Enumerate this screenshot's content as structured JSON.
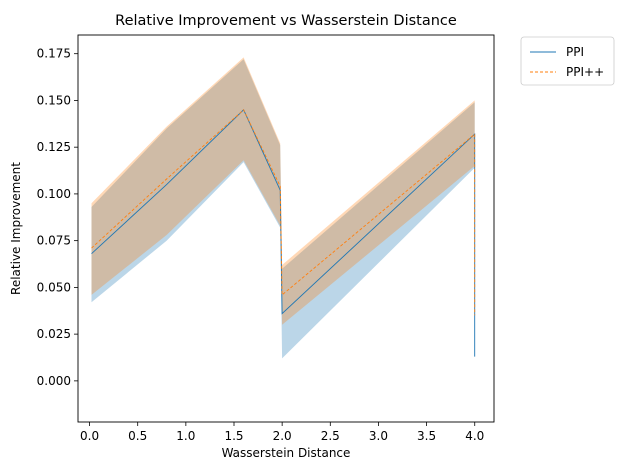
{
  "chart_data": {
    "type": "line",
    "title": "Relative Improvement vs Wasserstein Distance",
    "xlabel": "Wasserstein Distance",
    "ylabel": "Relative Improvement",
    "xlim": [
      -0.12,
      4.2
    ],
    "ylim": [
      -0.022,
      0.185
    ],
    "xticks": [
      0.0,
      0.5,
      1.0,
      1.5,
      2.0,
      2.5,
      3.0,
      3.5,
      4.0
    ],
    "xtick_labels": [
      "0.0",
      "0.5",
      "1.0",
      "1.5",
      "2.0",
      "2.5",
      "3.0",
      "3.5",
      "4.0"
    ],
    "yticks": [
      0.0,
      0.025,
      0.05,
      0.075,
      0.1,
      0.125,
      0.15,
      0.175
    ],
    "ytick_labels": [
      "0.000",
      "0.025",
      "0.050",
      "0.075",
      "0.100",
      "0.125",
      "0.150",
      "0.175"
    ],
    "grid": false,
    "legend_placement": "outside-top-right",
    "series": [
      {
        "name": "PPI",
        "color": "#1f77b4",
        "linestyle": "solid",
        "x": [
          0.02,
          0.8,
          1.6,
          1.98,
          2.0,
          4.0,
          4.0
        ],
        "y": [
          0.068,
          0.105,
          0.145,
          0.102,
          0.036,
          0.132,
          0.013
        ],
        "band_lower": [
          0.042,
          0.075,
          0.117,
          0.082,
          0.012,
          0.114,
          0.013
        ],
        "band_upper": [
          0.093,
          0.135,
          0.172,
          0.126,
          0.06,
          0.149,
          0.013
        ]
      },
      {
        "name": "PPI++",
        "color": "#ff7f0e",
        "linestyle": "dashed",
        "x": [
          0.02,
          0.8,
          1.6,
          1.98,
          2.0,
          4.0,
          4.0
        ],
        "y": [
          0.071,
          0.108,
          0.145,
          0.104,
          0.046,
          0.132,
          0.035
        ],
        "band_lower": [
          0.046,
          0.078,
          0.118,
          0.083,
          0.03,
          0.115,
          0.035
        ],
        "band_upper": [
          0.095,
          0.136,
          0.173,
          0.127,
          0.062,
          0.15,
          0.035
        ]
      }
    ]
  }
}
